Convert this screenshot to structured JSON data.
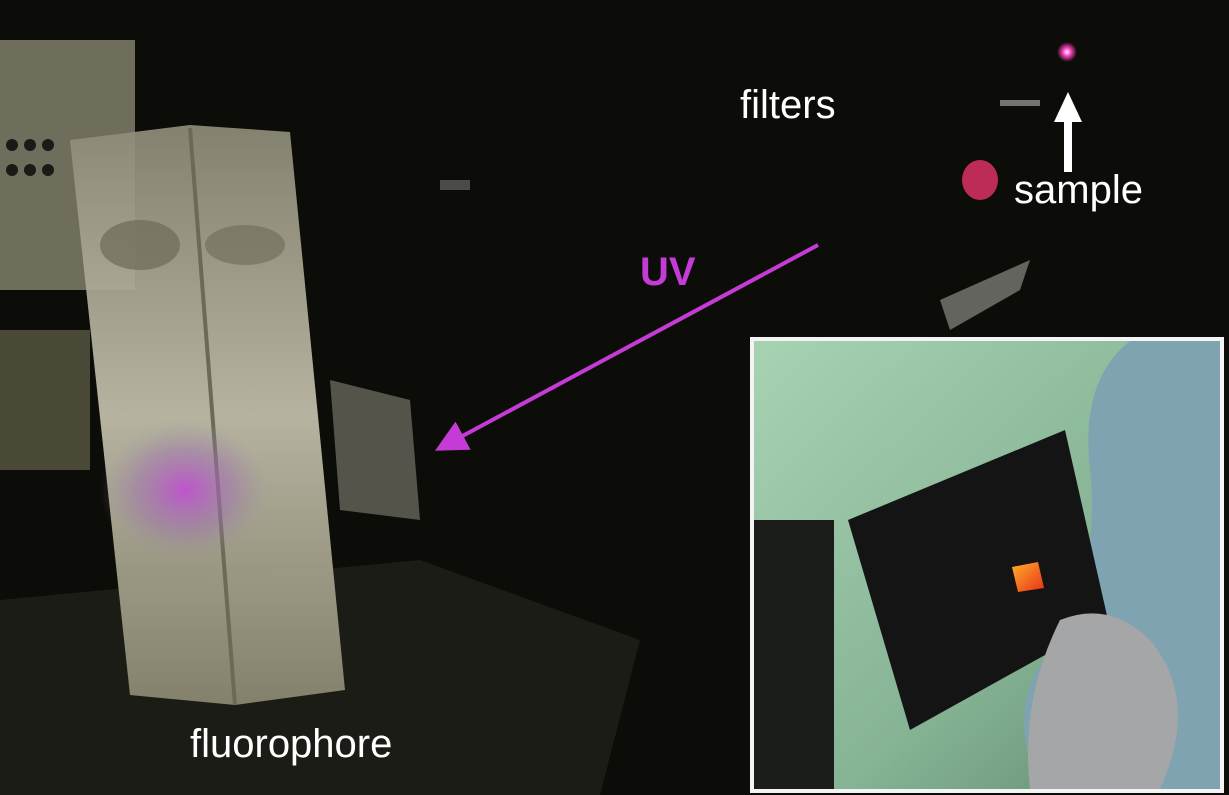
{
  "annotations": {
    "filters": "filters",
    "sample": "sample",
    "uv": "UV",
    "fluorophore": "fluorophore"
  }
}
